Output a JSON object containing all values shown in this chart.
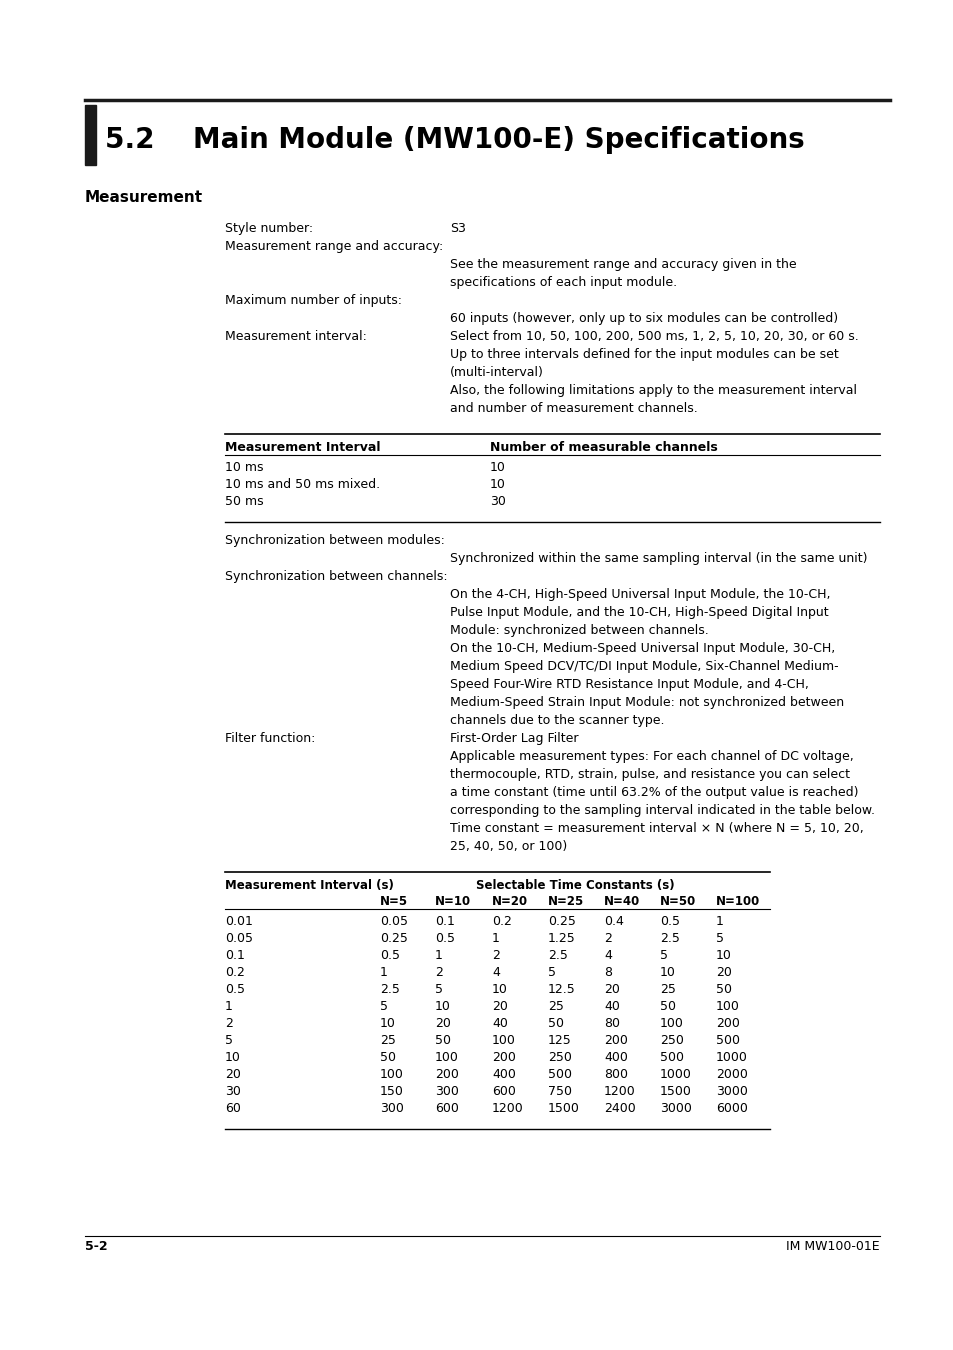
{
  "title": "5.2    Main Module (MW100-E) Specifications",
  "section": "Measurement",
  "bg_color": "#ffffff",
  "page_footer_left": "5-2",
  "page_footer_right": "IM MW100-01E",
  "table1_rows": [
    [
      "10 ms",
      "10"
    ],
    [
      "10 ms and 50 ms mixed.",
      "10"
    ],
    [
      "50 ms",
      "30"
    ]
  ],
  "table2_rows": [
    [
      "0.01",
      "0.05",
      "0.1",
      "0.2",
      "0.25",
      "0.4",
      "0.5",
      "1"
    ],
    [
      "0.05",
      "0.25",
      "0.5",
      "1",
      "1.25",
      "2",
      "2.5",
      "5"
    ],
    [
      "0.1",
      "0.5",
      "1",
      "2",
      "2.5",
      "4",
      "5",
      "10"
    ],
    [
      "0.2",
      "1",
      "2",
      "4",
      "5",
      "8",
      "10",
      "20"
    ],
    [
      "0.5",
      "2.5",
      "5",
      "10",
      "12.5",
      "20",
      "25",
      "50"
    ],
    [
      "1",
      "5",
      "10",
      "20",
      "25",
      "40",
      "50",
      "100"
    ],
    [
      "2",
      "10",
      "20",
      "40",
      "50",
      "80",
      "100",
      "200"
    ],
    [
      "5",
      "25",
      "50",
      "100",
      "125",
      "200",
      "250",
      "500"
    ],
    [
      "10",
      "50",
      "100",
      "200",
      "250",
      "400",
      "500",
      "1000"
    ],
    [
      "20",
      "100",
      "200",
      "400",
      "500",
      "800",
      "1000",
      "2000"
    ],
    [
      "30",
      "150",
      "300",
      "600",
      "750",
      "1200",
      "1500",
      "3000"
    ],
    [
      "60",
      "300",
      "600",
      "1200",
      "1500",
      "2400",
      "3000",
      "6000"
    ]
  ]
}
